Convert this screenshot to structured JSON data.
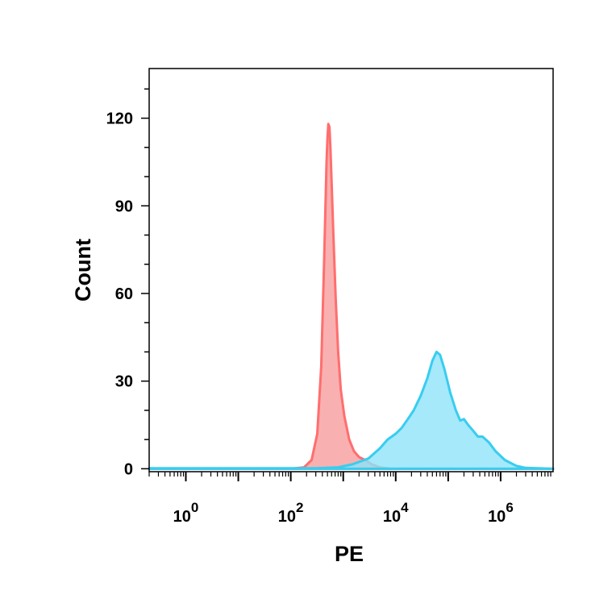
{
  "chart_data": {
    "type": "area",
    "xlabel": "PE",
    "ylabel": "Count",
    "x_scale": "log",
    "xlim": [
      0.2,
      10000000
    ],
    "ylim": [
      -1,
      137
    ],
    "y_ticks": [
      0,
      30,
      60,
      90,
      120
    ],
    "x_ticks": [
      {
        "base": "10",
        "exp": "0",
        "value": 1
      },
      {
        "base": "10",
        "exp": "2",
        "value": 100
      },
      {
        "base": "10",
        "exp": "4",
        "value": 10000
      },
      {
        "base": "10",
        "exp": "6",
        "value": 1000000
      }
    ],
    "grid": false,
    "legend": "none",
    "series": [
      {
        "color": "#ff6e6e",
        "fill": "#f79c9c",
        "points": [
          [
            0.2,
            0
          ],
          [
            100,
            0
          ],
          [
            180,
            0.5
          ],
          [
            250,
            3
          ],
          [
            320,
            12
          ],
          [
            380,
            35
          ],
          [
            430,
            70
          ],
          [
            480,
            105
          ],
          [
            500,
            113
          ],
          [
            520,
            118
          ],
          [
            545,
            117
          ],
          [
            570,
            110
          ],
          [
            600,
            98
          ],
          [
            650,
            80
          ],
          [
            720,
            58
          ],
          [
            800,
            40
          ],
          [
            900,
            27
          ],
          [
            1050,
            18
          ],
          [
            1300,
            10
          ],
          [
            1600,
            6
          ],
          [
            2000,
            4
          ],
          [
            2600,
            3
          ],
          [
            3500,
            1.5
          ],
          [
            5000,
            0.5
          ],
          [
            8000,
            0
          ],
          [
            10000000,
            0
          ]
        ]
      },
      {
        "color": "#38cdf0",
        "fill": "#8fe4f9",
        "points": [
          [
            0.2,
            0.2
          ],
          [
            300,
            0.2
          ],
          [
            800,
            0.5
          ],
          [
            1500,
            1.5
          ],
          [
            3000,
            3.5
          ],
          [
            5000,
            7
          ],
          [
            7000,
            10
          ],
          [
            10000,
            12
          ],
          [
            13000,
            14
          ],
          [
            17000,
            17
          ],
          [
            22000,
            20
          ],
          [
            30000,
            25
          ],
          [
            40000,
            31
          ],
          [
            50000,
            37
          ],
          [
            60000,
            40
          ],
          [
            70000,
            39
          ],
          [
            85000,
            34
          ],
          [
            110000,
            26
          ],
          [
            140000,
            20
          ],
          [
            170000,
            16.5
          ],
          [
            200000,
            17
          ],
          [
            240000,
            15
          ],
          [
            300000,
            13
          ],
          [
            370000,
            11
          ],
          [
            450000,
            11
          ],
          [
            600000,
            9
          ],
          [
            800000,
            6
          ],
          [
            1200000,
            3
          ],
          [
            2000000,
            1
          ],
          [
            3000000,
            0.3
          ],
          [
            10000000,
            0
          ]
        ]
      }
    ]
  }
}
